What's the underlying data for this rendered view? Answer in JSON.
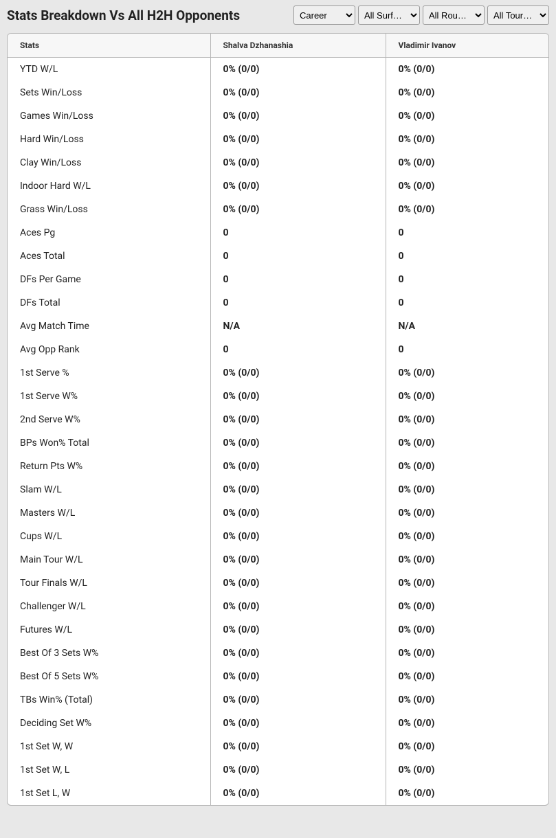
{
  "header": {
    "title": "Stats Breakdown Vs All H2H Opponents"
  },
  "filters": {
    "career": "Career",
    "surface": "All Surf…",
    "round": "All Rou…",
    "tour": "All Tour…"
  },
  "table": {
    "columns": {
      "stats": "Stats",
      "player1": "Shalva Dzhanashia",
      "player2": "Vladimir Ivanov"
    },
    "rows": [
      {
        "stat": "YTD W/L",
        "p1": "0% (0/0)",
        "p2": "0% (0/0)"
      },
      {
        "stat": "Sets Win/Loss",
        "p1": "0% (0/0)",
        "p2": "0% (0/0)"
      },
      {
        "stat": "Games Win/Loss",
        "p1": "0% (0/0)",
        "p2": "0% (0/0)"
      },
      {
        "stat": "Hard Win/Loss",
        "p1": "0% (0/0)",
        "p2": "0% (0/0)"
      },
      {
        "stat": "Clay Win/Loss",
        "p1": "0% (0/0)",
        "p2": "0% (0/0)"
      },
      {
        "stat": "Indoor Hard W/L",
        "p1": "0% (0/0)",
        "p2": "0% (0/0)"
      },
      {
        "stat": "Grass Win/Loss",
        "p1": "0% (0/0)",
        "p2": "0% (0/0)"
      },
      {
        "stat": "Aces Pg",
        "p1": "0",
        "p2": "0"
      },
      {
        "stat": "Aces Total",
        "p1": "0",
        "p2": "0"
      },
      {
        "stat": "DFs Per Game",
        "p1": "0",
        "p2": "0"
      },
      {
        "stat": "DFs Total",
        "p1": "0",
        "p2": "0"
      },
      {
        "stat": "Avg Match Time",
        "p1": "N/A",
        "p2": "N/A"
      },
      {
        "stat": "Avg Opp Rank",
        "p1": "0",
        "p2": "0"
      },
      {
        "stat": "1st Serve %",
        "p1": "0% (0/0)",
        "p2": "0% (0/0)"
      },
      {
        "stat": "1st Serve W%",
        "p1": "0% (0/0)",
        "p2": "0% (0/0)"
      },
      {
        "stat": "2nd Serve W%",
        "p1": "0% (0/0)",
        "p2": "0% (0/0)"
      },
      {
        "stat": "BPs Won% Total",
        "p1": "0% (0/0)",
        "p2": "0% (0/0)"
      },
      {
        "stat": "Return Pts W%",
        "p1": "0% (0/0)",
        "p2": "0% (0/0)"
      },
      {
        "stat": "Slam W/L",
        "p1": "0% (0/0)",
        "p2": "0% (0/0)"
      },
      {
        "stat": "Masters W/L",
        "p1": "0% (0/0)",
        "p2": "0% (0/0)"
      },
      {
        "stat": "Cups W/L",
        "p1": "0% (0/0)",
        "p2": "0% (0/0)"
      },
      {
        "stat": "Main Tour W/L",
        "p1": "0% (0/0)",
        "p2": "0% (0/0)"
      },
      {
        "stat": "Tour Finals W/L",
        "p1": "0% (0/0)",
        "p2": "0% (0/0)"
      },
      {
        "stat": "Challenger W/L",
        "p1": "0% (0/0)",
        "p2": "0% (0/0)"
      },
      {
        "stat": "Futures W/L",
        "p1": "0% (0/0)",
        "p2": "0% (0/0)"
      },
      {
        "stat": "Best Of 3 Sets W%",
        "p1": "0% (0/0)",
        "p2": "0% (0/0)"
      },
      {
        "stat": "Best Of 5 Sets W%",
        "p1": "0% (0/0)",
        "p2": "0% (0/0)"
      },
      {
        "stat": "TBs Win% (Total)",
        "p1": "0% (0/0)",
        "p2": "0% (0/0)"
      },
      {
        "stat": "Deciding Set W%",
        "p1": "0% (0/0)",
        "p2": "0% (0/0)"
      },
      {
        "stat": "1st Set W, W",
        "p1": "0% (0/0)",
        "p2": "0% (0/0)"
      },
      {
        "stat": "1st Set W, L",
        "p1": "0% (0/0)",
        "p2": "0% (0/0)"
      },
      {
        "stat": "1st Set L, W",
        "p1": "0% (0/0)",
        "p2": "0% (0/0)"
      }
    ]
  }
}
